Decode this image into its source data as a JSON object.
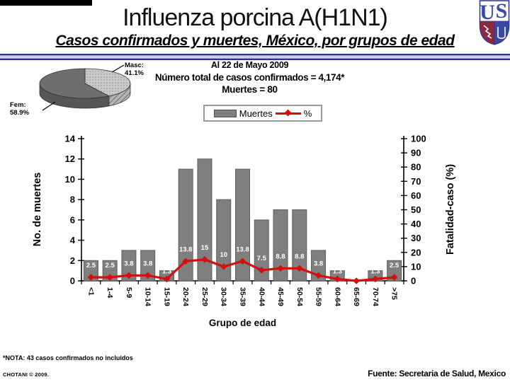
{
  "header": {
    "title": "Influenza porcina A(H1N1)",
    "subtitle": "Casos confirmados y muertes, México, por grupos de edad",
    "date_line": "Al 22 de Mayo  2009",
    "total_line": "Número total de casos confirmados = 4,174*",
    "deaths_line": "Muertes = 80"
  },
  "logo": {
    "letter_u": "U",
    "letter_s": "S"
  },
  "pie": {
    "slices": [
      {
        "label": "Masc:",
        "pct": "41.1%",
        "value": 41.1,
        "color": "#c9c9c9",
        "textured": true
      },
      {
        "label": "Fem:",
        "pct": "58.9%",
        "value": 58.9,
        "color": "#6e6e6e",
        "textured": false
      }
    ]
  },
  "legend": {
    "bar_label": "Muertes",
    "line_label": "%"
  },
  "chart_data": {
    "type": "bar+line",
    "categories": [
      "<1",
      "1-4",
      "5-9",
      "10-14",
      "15-19",
      "20-24",
      "25-29",
      "30-34",
      "35-39",
      "40-44",
      "45-49",
      "50-54",
      "55-59",
      "60-64",
      "65-69",
      "70-74",
      ">75"
    ],
    "series": [
      {
        "name": "Muertes",
        "type": "bar",
        "axis": "left",
        "values": [
          2,
          2,
          3,
          3,
          1,
          11,
          12,
          8,
          11,
          6,
          7,
          7,
          3,
          1,
          0,
          1,
          2
        ],
        "color": "#7f7f7f"
      },
      {
        "name": "%",
        "type": "line",
        "axis": "right",
        "values": [
          2.5,
          2.5,
          3.8,
          3.8,
          1.3,
          13.8,
          15,
          10,
          13.8,
          7.5,
          8.8,
          8.8,
          3.8,
          1.3,
          0,
          1.3,
          2.5
        ],
        "labels": [
          "2.5",
          "2.5",
          "3.8",
          "3.8",
          "1.3",
          "13.8",
          "15",
          "10",
          "13.8",
          "7.5",
          "8.8",
          "8.8",
          "3.8",
          "1.3",
          "",
          "1.3",
          "2.5"
        ],
        "color": "#d40f0f"
      }
    ],
    "left_axis": {
      "title": "No. de muertes",
      "min": 0,
      "max": 14,
      "step": 2
    },
    "right_axis": {
      "title": "Fatalidad-caso (%)",
      "min": 0,
      "max": 100,
      "step": 10
    },
    "xlabel": "Grupo de edad",
    "grid": false,
    "legend_position": "top-center"
  },
  "footer": {
    "note": "*NOTA: 43 casos confirmados no incluidos",
    "credit": "CHOTANI © 2009.",
    "source": "Fuente: Secretaria de Salud, Mexico"
  }
}
